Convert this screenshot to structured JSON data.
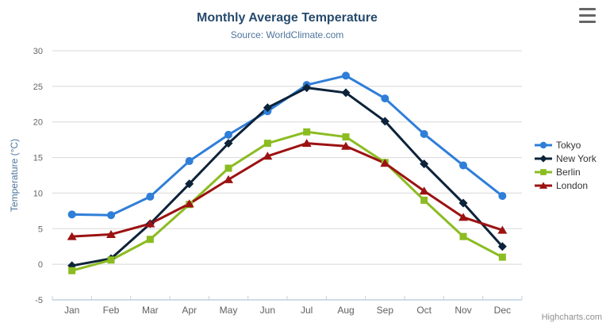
{
  "title": "Monthly Average Temperature",
  "subtitle": "Source: WorldClimate.com",
  "credits": "Highcharts.com",
  "menu": {
    "icon": "hamburger-icon"
  },
  "chart_data": {
    "type": "line",
    "title": "Monthly Average Temperature",
    "subtitle": "Source: WorldClimate.com",
    "categories": [
      "Jan",
      "Feb",
      "Mar",
      "Apr",
      "May",
      "Jun",
      "Jul",
      "Aug",
      "Sep",
      "Oct",
      "Nov",
      "Dec"
    ],
    "series": [
      {
        "name": "Tokyo",
        "color": "#2f7ed8",
        "marker": "circle",
        "values": [
          7.0,
          6.9,
          9.5,
          14.5,
          18.2,
          21.5,
          25.2,
          26.5,
          23.3,
          18.3,
          13.9,
          9.6
        ]
      },
      {
        "name": "New York",
        "color": "#0d233a",
        "marker": "diamond",
        "values": [
          -0.2,
          0.8,
          5.7,
          11.3,
          17.0,
          22.0,
          24.8,
          24.1,
          20.1,
          14.1,
          8.6,
          2.5
        ]
      },
      {
        "name": "Berlin",
        "color": "#8bbc21",
        "marker": "square",
        "values": [
          -0.9,
          0.6,
          3.5,
          8.4,
          13.5,
          17.0,
          18.6,
          17.9,
          14.3,
          9.0,
          3.9,
          1.0
        ]
      },
      {
        "name": "London",
        "color": "#9c1212",
        "marker": "triangle",
        "values": [
          3.9,
          4.2,
          5.7,
          8.5,
          11.9,
          15.2,
          17.0,
          16.6,
          14.2,
          10.3,
          6.6,
          4.8
        ]
      }
    ],
    "xlabel": "",
    "ylabel": "Temperature (°C)",
    "ylim": [
      -5,
      30
    ],
    "ytick_interval": 5,
    "grid": true,
    "legend_position": "right",
    "colors": {
      "grid_line": "#d8d8d8",
      "axis_line": "#c0d0e0",
      "axis_label": "#666666",
      "axis_title": "#4d759e",
      "title": "#274b6d",
      "subtitle": "#4d759e"
    }
  }
}
